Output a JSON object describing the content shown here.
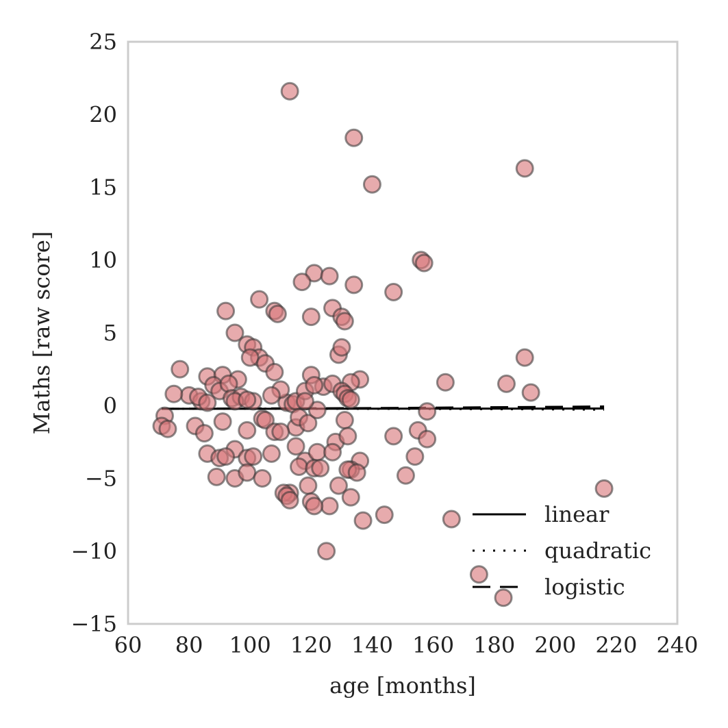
{
  "chart_data": {
    "type": "scatter",
    "title": "",
    "xlabel": "age [months]",
    "ylabel": "Maths [raw score]",
    "xlim": [
      60,
      240
    ],
    "ylim": [
      -15,
      25
    ],
    "xticks": [
      60,
      80,
      100,
      120,
      140,
      160,
      180,
      200,
      220,
      240
    ],
    "yticks": [
      -15,
      -10,
      -5,
      0,
      5,
      10,
      15,
      20,
      25
    ],
    "xtick_labels": [
      "60",
      "80",
      "100",
      "120",
      "140",
      "160",
      "180",
      "200",
      "220",
      "240"
    ],
    "ytick_labels": [
      "−15",
      "−10",
      "−5",
      "0",
      "5",
      "10",
      "15",
      "20",
      "25"
    ],
    "grid": false,
    "legend_position": "lower-right",
    "colors": {
      "marker_fill": "#d9787a",
      "marker_edge": "#333333",
      "line": "#000000",
      "frame": "#cccccc"
    },
    "series": [
      {
        "kind": "points",
        "x": [
          113,
          134,
          140,
          190,
          156,
          157,
          121,
          117,
          126,
          134,
          147,
          103,
          108,
          109,
          92,
          120,
          127,
          130,
          131,
          95,
          99,
          101,
          129,
          130,
          103,
          100,
          105,
          108,
          77,
          86,
          91,
          96,
          120,
          164,
          184,
          190,
          192,
          136,
          133,
          124,
          127,
          130,
          131,
          132,
          133,
          80,
          75,
          84,
          88,
          83,
          90,
          93,
          94,
          97,
          101,
          112,
          114,
          115,
          118,
          121,
          110,
          95,
          99,
          107,
          86,
          72,
          71,
          73,
          82,
          85,
          91,
          99,
          104,
          105,
          108,
          115,
          116,
          119,
          122,
          128,
          131,
          132,
          147,
          155,
          158,
          158,
          86,
          90,
          95,
          99,
          101,
          107,
          115,
          118,
          122,
          127,
          136,
          133,
          116,
          92,
          89,
          95,
          99,
          104,
          121,
          123,
          132,
          135,
          151,
          154,
          113,
          111,
          112,
          113,
          119,
          120,
          126,
          129,
          133,
          121,
          144,
          166,
          137,
          175,
          183,
          216,
          125,
          110,
          118
        ],
        "y": [
          21.6,
          18.4,
          15.2,
          16.3,
          10.0,
          9.8,
          9.1,
          8.5,
          8.9,
          8.3,
          7.8,
          7.3,
          6.5,
          6.3,
          6.5,
          6.1,
          6.7,
          6.1,
          5.8,
          5.0,
          4.2,
          4.0,
          3.5,
          4.0,
          3.3,
          3.3,
          2.9,
          2.3,
          2.5,
          2.0,
          2.1,
          1.8,
          2.1,
          1.6,
          1.5,
          3.3,
          0.9,
          1.8,
          1.6,
          1.3,
          1.5,
          1.0,
          0.8,
          0.5,
          0.4,
          0.7,
          0.8,
          0.3,
          1.4,
          0.6,
          1.0,
          1.5,
          0.5,
          0.6,
          0.3,
          0.2,
          0.1,
          0.3,
          1.0,
          1.4,
          1.1,
          0.3,
          0.4,
          0.7,
          0.2,
          -0.7,
          -1.4,
          -1.6,
          -1.4,
          -1.9,
          -1.1,
          -1.7,
          -0.9,
          -1.0,
          -1.8,
          -1.5,
          -0.8,
          -1.2,
          -0.3,
          -2.5,
          -1.0,
          -2.1,
          -2.1,
          -1.7,
          -2.3,
          -0.4,
          -3.3,
          -3.6,
          -3.0,
          -3.6,
          -3.5,
          -3.3,
          -2.8,
          -3.8,
          -3.2,
          -3.2,
          -3.8,
          -4.4,
          -4.2,
          -3.5,
          -4.9,
          -5.0,
          -4.6,
          -5.0,
          -4.3,
          -4.3,
          -4.4,
          -4.6,
          -4.8,
          -3.5,
          -6.0,
          -6.0,
          -6.2,
          -6.5,
          -5.5,
          -6.6,
          -6.9,
          -5.5,
          -6.3,
          -6.9,
          -7.5,
          -7.8,
          -7.9,
          -11.6,
          -13.2,
          -5.7,
          -10.0,
          -1.8,
          0.3
        ]
      },
      {
        "name": "linear",
        "kind": "line",
        "dash": "solid",
        "x": [
          71,
          216
        ],
        "y": [
          -0.22,
          -0.2
        ]
      },
      {
        "name": "quadratic",
        "kind": "line",
        "dash": "dotted",
        "x": [
          71,
          100,
          130,
          160,
          190,
          216
        ],
        "y": [
          -0.22,
          -0.21,
          -0.22,
          -0.23,
          -0.25,
          -0.28
        ]
      },
      {
        "name": "logistic",
        "kind": "line",
        "dash": "dashed",
        "x": [
          71,
          140,
          216
        ],
        "y": [
          -0.22,
          -0.17,
          -0.06
        ]
      }
    ]
  }
}
